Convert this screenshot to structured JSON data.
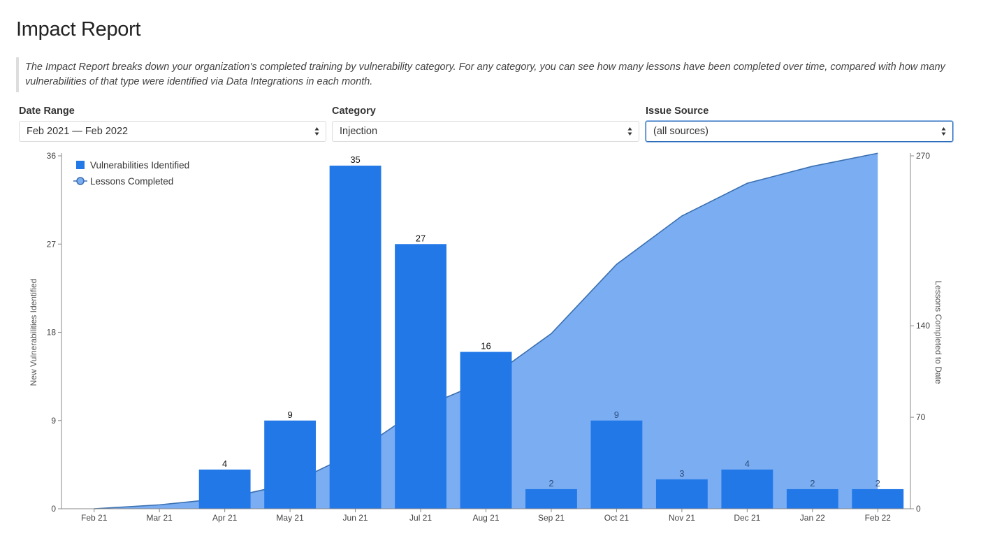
{
  "page": {
    "title": "Impact Report",
    "description": "The Impact Report breaks down your organization's completed training by vulnerability category. For any category, you can see how many lessons have been completed over time, compared with how many vulnerabilities of that type were identified via Data Integrations in each month."
  },
  "filters": [
    {
      "label": "Date Range",
      "value": "Feb 2021 — Feb 2022"
    },
    {
      "label": "Category",
      "value": "Injection"
    },
    {
      "label": "Issue Source",
      "value": "(all sources)"
    }
  ],
  "colors": {
    "bar": "#2378e8",
    "area": "#7aadf2",
    "line": "#3a6fb0",
    "axis": "#888888"
  },
  "chart_data": {
    "type": "bar",
    "categories": [
      "Feb 21",
      "Mar 21",
      "Apr 21",
      "May 21",
      "Jun 21",
      "Jul 21",
      "Aug 21",
      "Sep 21",
      "Oct 21",
      "Nov 21",
      "Dec 21",
      "Jan 22",
      "Feb 22"
    ],
    "series": [
      {
        "name": "Vulnerabilities Identified",
        "type": "bar",
        "axis": "left",
        "values": [
          0,
          0,
          4,
          9,
          35,
          27,
          16,
          2,
          9,
          3,
          4,
          2,
          2
        ]
      },
      {
        "name": "Lessons Completed",
        "type": "area",
        "axis": "right",
        "values": [
          0,
          3,
          8,
          19,
          43,
          77,
          98,
          134,
          187,
          224,
          249,
          262,
          272
        ]
      }
    ],
    "ylabel": "New Vulnerabilities Identified",
    "ylabel_right": "Lessons Completed to Date",
    "ylim": [
      0,
      36
    ],
    "ylim_right": [
      0,
      270
    ],
    "yticks": [
      0,
      9,
      18,
      27,
      36
    ],
    "yticks_right": [
      0,
      70,
      140,
      270
    ],
    "legend_position": "top-left",
    "grid": false
  }
}
